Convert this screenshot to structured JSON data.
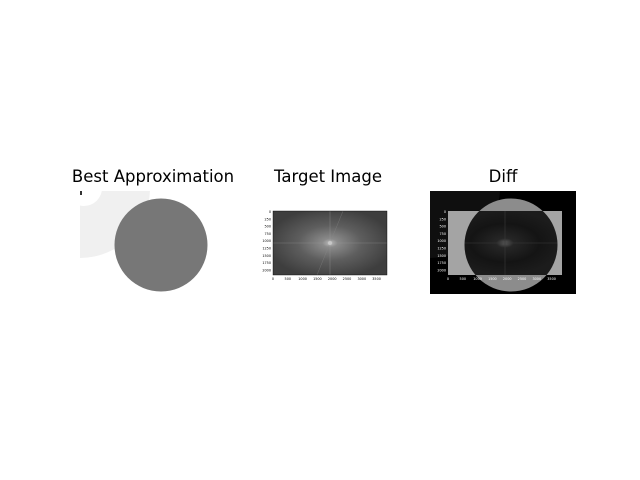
{
  "figure": {
    "panels": [
      {
        "title": "Best Approximation"
      },
      {
        "title": "Target Image"
      },
      {
        "title": "Diff"
      }
    ],
    "target_image": {
      "y_ticks": [
        "0",
        "250",
        "500",
        "750",
        "1000",
        "1250",
        "1500",
        "1750",
        "2000"
      ],
      "x_ticks": [
        "0",
        "500",
        "1000",
        "1500",
        "2000",
        "2500",
        "3000",
        "3500"
      ]
    },
    "diff_image": {
      "y_ticks": [
        "0",
        "250",
        "500",
        "750",
        "1000",
        "1250",
        "1500",
        "1750",
        "2000"
      ],
      "x_ticks": [
        "0",
        "500",
        "1000",
        "1500",
        "2000",
        "2500",
        "3000",
        "3500"
      ]
    },
    "colors": {
      "approx_circle": "#777777",
      "approx_background_arc": "#f0f0f0",
      "diff_background": "#000000",
      "diff_circle": "#8c8c8c"
    }
  }
}
